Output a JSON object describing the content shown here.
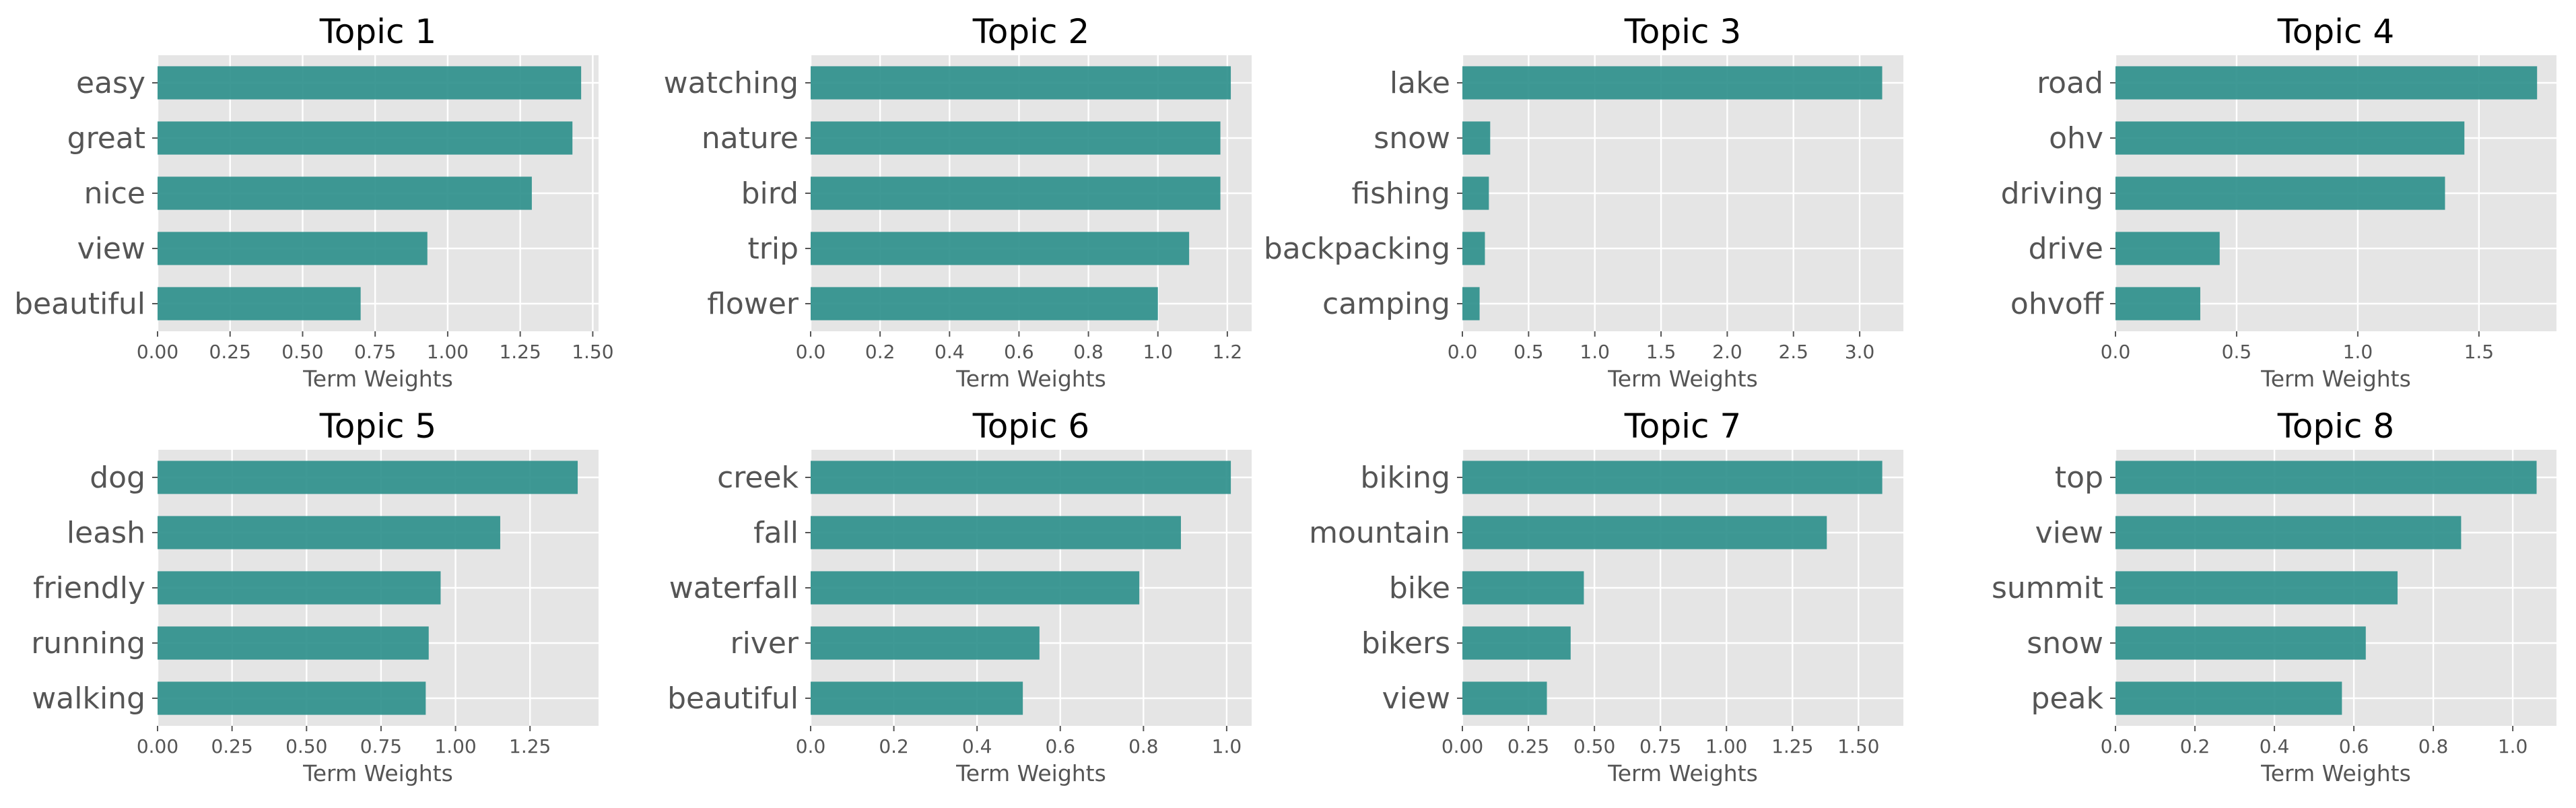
{
  "figure": {
    "background": "#ffffff",
    "plot_background": "#e5e5e5",
    "bar_color": "#2a8e89",
    "grid": true
  },
  "chart_data": [
    {
      "type": "bar",
      "orientation": "horizontal",
      "title": "Topic 1",
      "xlabel": "Term Weights",
      "ylabel": "",
      "categories": [
        "easy",
        "great",
        "nice",
        "view",
        "beautiful"
      ],
      "values": [
        1.46,
        1.43,
        1.29,
        0.93,
        0.7
      ],
      "xlim": [
        0,
        1.52
      ],
      "xticks": [
        0,
        0.25,
        0.5,
        0.75,
        1.0,
        1.25,
        1.5
      ],
      "xtick_labels": [
        "0.00",
        "0.25",
        "0.50",
        "0.75",
        "1.00",
        "1.25",
        "1.50"
      ]
    },
    {
      "type": "bar",
      "orientation": "horizontal",
      "title": "Topic 2",
      "xlabel": "Term Weights",
      "ylabel": "",
      "categories": [
        "watching",
        "nature",
        "bird",
        "trip",
        "flower"
      ],
      "values": [
        1.21,
        1.18,
        1.18,
        1.09,
        1.0
      ],
      "xlim": [
        0,
        1.27
      ],
      "xticks": [
        0,
        0.2,
        0.4,
        0.6,
        0.8,
        1.0,
        1.2
      ],
      "xtick_labels": [
        "0.0",
        "0.2",
        "0.4",
        "0.6",
        "0.8",
        "1.0",
        "1.2"
      ]
    },
    {
      "type": "bar",
      "orientation": "horizontal",
      "title": "Topic 3",
      "xlabel": "Term Weights",
      "ylabel": "",
      "categories": [
        "lake",
        "snow",
        "fishing",
        "backpacking",
        "camping"
      ],
      "values": [
        3.17,
        0.21,
        0.2,
        0.17,
        0.13
      ],
      "xlim": [
        0,
        3.33
      ],
      "xticks": [
        0,
        0.5,
        1.0,
        1.5,
        2.0,
        2.5,
        3.0
      ],
      "xtick_labels": [
        "0.0",
        "0.5",
        "1.0",
        "1.5",
        "2.0",
        "2.5",
        "3.0"
      ]
    },
    {
      "type": "bar",
      "orientation": "horizontal",
      "title": "Topic 4",
      "xlabel": "Term Weights",
      "ylabel": "",
      "categories": [
        "road",
        "ohv",
        "driving",
        "drive",
        "ohvoff"
      ],
      "values": [
        1.74,
        1.44,
        1.36,
        0.43,
        0.35
      ],
      "xlim": [
        0,
        1.82
      ],
      "xticks": [
        0,
        0.5,
        1.0,
        1.5
      ],
      "xtick_labels": [
        "0.0",
        "0.5",
        "1.0",
        "1.5"
      ]
    },
    {
      "type": "bar",
      "orientation": "horizontal",
      "title": "Topic 5",
      "xlabel": "Term Weights",
      "ylabel": "",
      "categories": [
        "dog",
        "leash",
        "friendly",
        "running",
        "walking"
      ],
      "values": [
        1.41,
        1.15,
        0.95,
        0.91,
        0.9
      ],
      "xlim": [
        0,
        1.48
      ],
      "xticks": [
        0,
        0.25,
        0.5,
        0.75,
        1.0,
        1.25
      ],
      "xtick_labels": [
        "0.00",
        "0.25",
        "0.50",
        "0.75",
        "1.00",
        "1.25"
      ]
    },
    {
      "type": "bar",
      "orientation": "horizontal",
      "title": "Topic 6",
      "xlabel": "Term Weights",
      "ylabel": "",
      "categories": [
        "creek",
        "fall",
        "waterfall",
        "river",
        "beautiful"
      ],
      "values": [
        1.01,
        0.89,
        0.79,
        0.55,
        0.51
      ],
      "xlim": [
        0,
        1.06
      ],
      "xticks": [
        0,
        0.2,
        0.4,
        0.6,
        0.8,
        1.0
      ],
      "xtick_labels": [
        "0.0",
        "0.2",
        "0.4",
        "0.6",
        "0.8",
        "1.0"
      ]
    },
    {
      "type": "bar",
      "orientation": "horizontal",
      "title": "Topic 7",
      "xlabel": "Term Weights",
      "ylabel": "",
      "categories": [
        "biking",
        "mountain",
        "bike",
        "bikers",
        "view"
      ],
      "values": [
        1.59,
        1.38,
        0.46,
        0.41,
        0.32
      ],
      "xlim": [
        0,
        1.67
      ],
      "xticks": [
        0,
        0.25,
        0.5,
        0.75,
        1.0,
        1.25,
        1.5
      ],
      "xtick_labels": [
        "0.00",
        "0.25",
        "0.50",
        "0.75",
        "1.00",
        "1.25",
        "1.50"
      ]
    },
    {
      "type": "bar",
      "orientation": "horizontal",
      "title": "Topic 8",
      "xlabel": "Term Weights",
      "ylabel": "",
      "categories": [
        "top",
        "view",
        "summit",
        "snow",
        "peak"
      ],
      "values": [
        1.06,
        0.87,
        0.71,
        0.63,
        0.57
      ],
      "xlim": [
        0,
        1.11
      ],
      "xticks": [
        0,
        0.2,
        0.4,
        0.6,
        0.8,
        1.0
      ],
      "xtick_labels": [
        "0.0",
        "0.2",
        "0.4",
        "0.6",
        "0.8",
        "1.0"
      ]
    }
  ]
}
